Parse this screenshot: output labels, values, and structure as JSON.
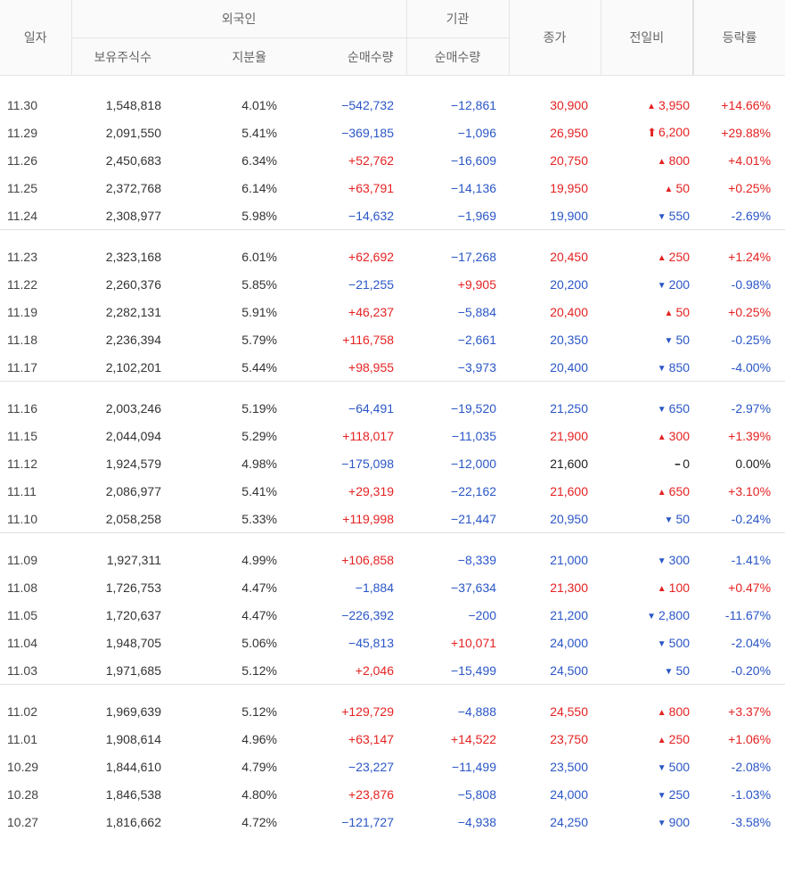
{
  "headers": {
    "date": "일자",
    "foreign": "외국인",
    "foreign_shares": "보유주식수",
    "foreign_ratio": "지분율",
    "foreign_net": "순매수량",
    "institution": "기관",
    "inst_net": "순매수량",
    "close": "종가",
    "change": "전일비",
    "rate": "등락률"
  },
  "colors": {
    "up": "#e52222",
    "down": "#2a56c6",
    "flat": "#222222"
  },
  "groups": [
    [
      {
        "date": "11.30",
        "shares": "1,548,818",
        "ratio": "4.01%",
        "fnet": "−542,732",
        "fdir": "down",
        "inet": "−12,861",
        "idir": "down",
        "close": "30,900",
        "cdir": "up",
        "chg_icon": "tri-up",
        "chg": "3,950",
        "rate": "+14.66%"
      },
      {
        "date": "11.29",
        "shares": "2,091,550",
        "ratio": "5.41%",
        "fnet": "−369,185",
        "fdir": "down",
        "inet": "−1,096",
        "idir": "down",
        "close": "26,950",
        "cdir": "up",
        "chg_icon": "limit-up",
        "chg": "6,200",
        "rate": "+29.88%"
      },
      {
        "date": "11.26",
        "shares": "2,450,683",
        "ratio": "6.34%",
        "fnet": "+52,762",
        "fdir": "up",
        "inet": "−16,609",
        "idir": "down",
        "close": "20,750",
        "cdir": "up",
        "chg_icon": "tri-up",
        "chg": "800",
        "rate": "+4.01%"
      },
      {
        "date": "11.25",
        "shares": "2,372,768",
        "ratio": "6.14%",
        "fnet": "+63,791",
        "fdir": "up",
        "inet": "−14,136",
        "idir": "down",
        "close": "19,950",
        "cdir": "up",
        "chg_icon": "tri-up",
        "chg": "50",
        "rate": "+0.25%"
      },
      {
        "date": "11.24",
        "shares": "2,308,977",
        "ratio": "5.98%",
        "fnet": "−14,632",
        "fdir": "down",
        "inet": "−1,969",
        "idir": "down",
        "close": "19,900",
        "cdir": "down",
        "chg_icon": "tri-down",
        "chg": "550",
        "rate": "-2.69%"
      }
    ],
    [
      {
        "date": "11.23",
        "shares": "2,323,168",
        "ratio": "6.01%",
        "fnet": "+62,692",
        "fdir": "up",
        "inet": "−17,268",
        "idir": "down",
        "close": "20,450",
        "cdir": "up",
        "chg_icon": "tri-up",
        "chg": "250",
        "rate": "+1.24%"
      },
      {
        "date": "11.22",
        "shares": "2,260,376",
        "ratio": "5.85%",
        "fnet": "−21,255",
        "fdir": "down",
        "inet": "+9,905",
        "idir": "up",
        "close": "20,200",
        "cdir": "down",
        "chg_icon": "tri-down",
        "chg": "200",
        "rate": "-0.98%"
      },
      {
        "date": "11.19",
        "shares": "2,282,131",
        "ratio": "5.91%",
        "fnet": "+46,237",
        "fdir": "up",
        "inet": "−5,884",
        "idir": "down",
        "close": "20,400",
        "cdir": "up",
        "chg_icon": "tri-up",
        "chg": "50",
        "rate": "+0.25%"
      },
      {
        "date": "11.18",
        "shares": "2,236,394",
        "ratio": "5.79%",
        "fnet": "+116,758",
        "fdir": "up",
        "inet": "−2,661",
        "idir": "down",
        "close": "20,350",
        "cdir": "down",
        "chg_icon": "tri-down",
        "chg": "50",
        "rate": "-0.25%"
      },
      {
        "date": "11.17",
        "shares": "2,102,201",
        "ratio": "5.44%",
        "fnet": "+98,955",
        "fdir": "up",
        "inet": "−3,973",
        "idir": "down",
        "close": "20,400",
        "cdir": "down",
        "chg_icon": "tri-down",
        "chg": "850",
        "rate": "-4.00%"
      }
    ],
    [
      {
        "date": "11.16",
        "shares": "2,003,246",
        "ratio": "5.19%",
        "fnet": "−64,491",
        "fdir": "down",
        "inet": "−19,520",
        "idir": "down",
        "close": "21,250",
        "cdir": "down",
        "chg_icon": "tri-down",
        "chg": "650",
        "rate": "-2.97%"
      },
      {
        "date": "11.15",
        "shares": "2,044,094",
        "ratio": "5.29%",
        "fnet": "+118,017",
        "fdir": "up",
        "inet": "−11,035",
        "idir": "down",
        "close": "21,900",
        "cdir": "up",
        "chg_icon": "tri-up",
        "chg": "300",
        "rate": "+1.39%"
      },
      {
        "date": "11.12",
        "shares": "1,924,579",
        "ratio": "4.98%",
        "fnet": "−175,098",
        "fdir": "down",
        "inet": "−12,000",
        "idir": "down",
        "close": "21,600",
        "cdir": "flat",
        "chg_icon": "flat",
        "chg": "0",
        "rate": "0.00%"
      },
      {
        "date": "11.11",
        "shares": "2,086,977",
        "ratio": "5.41%",
        "fnet": "+29,319",
        "fdir": "up",
        "inet": "−22,162",
        "idir": "down",
        "close": "21,600",
        "cdir": "up",
        "chg_icon": "tri-up",
        "chg": "650",
        "rate": "+3.10%"
      },
      {
        "date": "11.10",
        "shares": "2,058,258",
        "ratio": "5.33%",
        "fnet": "+119,998",
        "fdir": "up",
        "inet": "−21,447",
        "idir": "down",
        "close": "20,950",
        "cdir": "down",
        "chg_icon": "tri-down",
        "chg": "50",
        "rate": "-0.24%"
      }
    ],
    [
      {
        "date": "11.09",
        "shares": "1,927,311",
        "ratio": "4.99%",
        "fnet": "+106,858",
        "fdir": "up",
        "inet": "−8,339",
        "idir": "down",
        "close": "21,000",
        "cdir": "down",
        "chg_icon": "tri-down",
        "chg": "300",
        "rate": "-1.41%"
      },
      {
        "date": "11.08",
        "shares": "1,726,753",
        "ratio": "4.47%",
        "fnet": "−1,884",
        "fdir": "down",
        "inet": "−37,634",
        "idir": "down",
        "close": "21,300",
        "cdir": "up",
        "chg_icon": "tri-up",
        "chg": "100",
        "rate": "+0.47%"
      },
      {
        "date": "11.05",
        "shares": "1,720,637",
        "ratio": "4.47%",
        "fnet": "−226,392",
        "fdir": "down",
        "inet": "−200",
        "idir": "down",
        "close": "21,200",
        "cdir": "down",
        "chg_icon": "tri-down",
        "chg": "2,800",
        "rate": "-11.67%"
      },
      {
        "date": "11.04",
        "shares": "1,948,705",
        "ratio": "5.06%",
        "fnet": "−45,813",
        "fdir": "down",
        "inet": "+10,071",
        "idir": "up",
        "close": "24,000",
        "cdir": "down",
        "chg_icon": "tri-down",
        "chg": "500",
        "rate": "-2.04%"
      },
      {
        "date": "11.03",
        "shares": "1,971,685",
        "ratio": "5.12%",
        "fnet": "+2,046",
        "fdir": "up",
        "inet": "−15,499",
        "idir": "down",
        "close": "24,500",
        "cdir": "down",
        "chg_icon": "tri-down",
        "chg": "50",
        "rate": "-0.20%"
      }
    ],
    [
      {
        "date": "11.02",
        "shares": "1,969,639",
        "ratio": "5.12%",
        "fnet": "+129,729",
        "fdir": "up",
        "inet": "−4,888",
        "idir": "down",
        "close": "24,550",
        "cdir": "up",
        "chg_icon": "tri-up",
        "chg": "800",
        "rate": "+3.37%"
      },
      {
        "date": "11.01",
        "shares": "1,908,614",
        "ratio": "4.96%",
        "fnet": "+63,147",
        "fdir": "up",
        "inet": "+14,522",
        "idir": "up",
        "close": "23,750",
        "cdir": "up",
        "chg_icon": "tri-up",
        "chg": "250",
        "rate": "+1.06%"
      },
      {
        "date": "10.29",
        "shares": "1,844,610",
        "ratio": "4.79%",
        "fnet": "−23,227",
        "fdir": "down",
        "inet": "−11,499",
        "idir": "down",
        "close": "23,500",
        "cdir": "down",
        "chg_icon": "tri-down",
        "chg": "500",
        "rate": "-2.08%"
      },
      {
        "date": "10.28",
        "shares": "1,846,538",
        "ratio": "4.80%",
        "fnet": "+23,876",
        "fdir": "up",
        "inet": "−5,808",
        "idir": "down",
        "close": "24,000",
        "cdir": "down",
        "chg_icon": "tri-down",
        "chg": "250",
        "rate": "-1.03%"
      },
      {
        "date": "10.27",
        "shares": "1,816,662",
        "ratio": "4.72%",
        "fnet": "−121,727",
        "fdir": "down",
        "inet": "−4,938",
        "idir": "down",
        "close": "24,250",
        "cdir": "down",
        "chg_icon": "tri-down",
        "chg": "900",
        "rate": "-3.58%"
      }
    ]
  ]
}
